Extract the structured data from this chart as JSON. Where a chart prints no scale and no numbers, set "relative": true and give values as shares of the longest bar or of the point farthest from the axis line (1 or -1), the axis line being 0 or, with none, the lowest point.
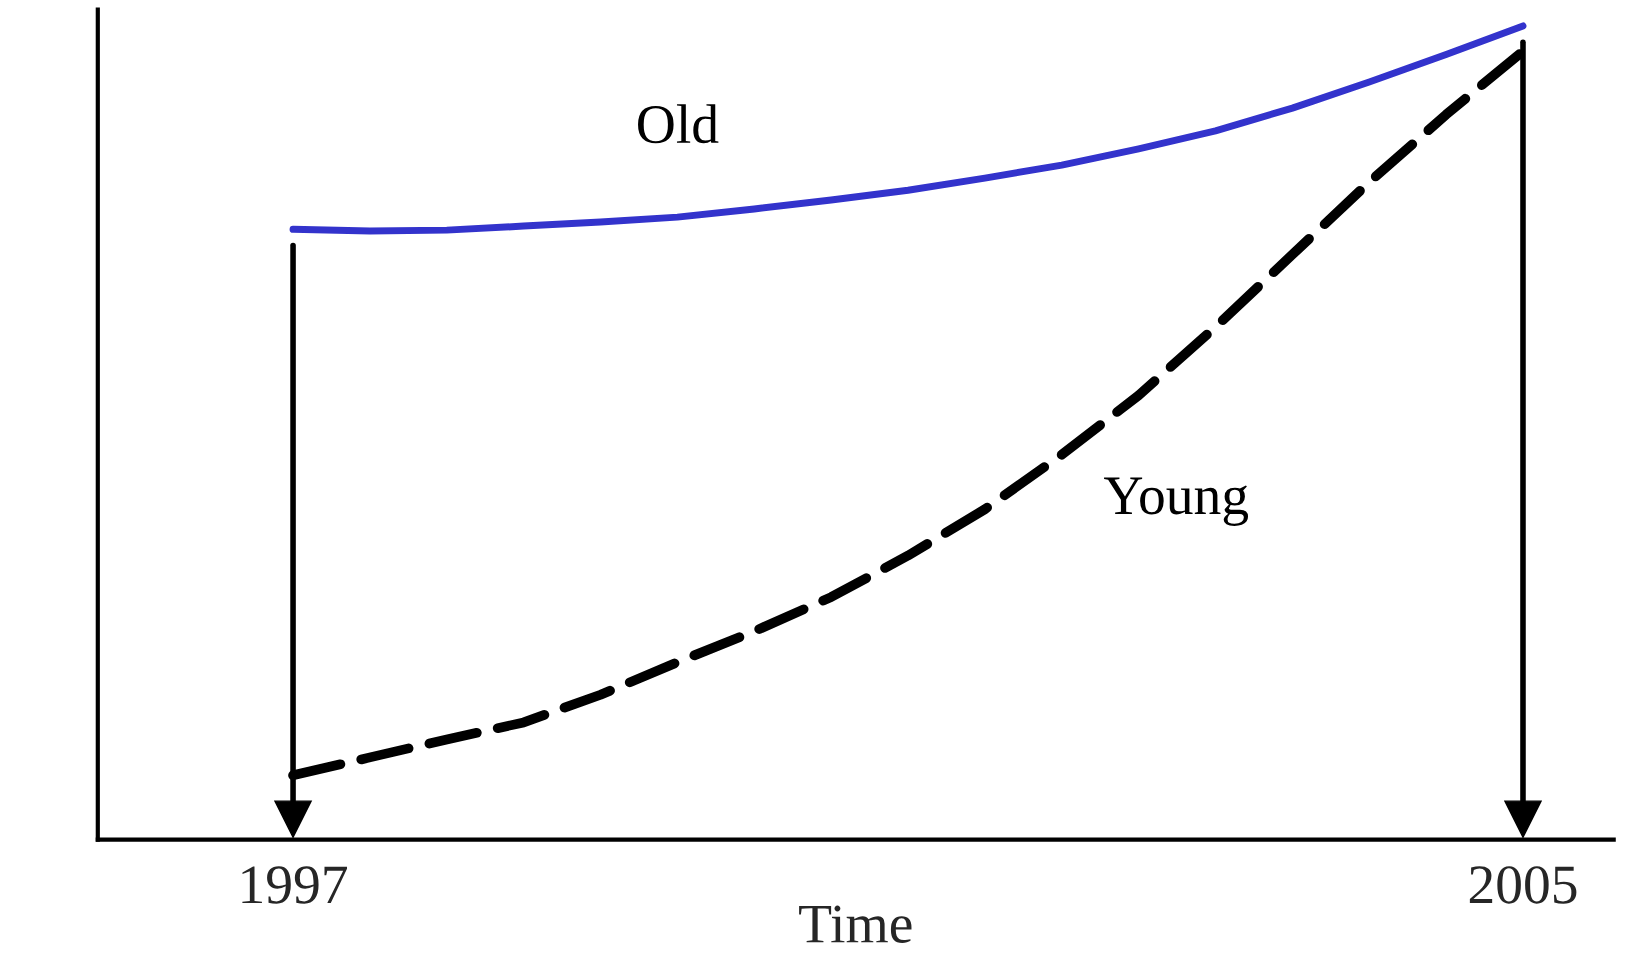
{
  "chart_data": {
    "type": "line",
    "relative": true,
    "xlabel": "Time",
    "x": [
      1997,
      1997.5,
      1998,
      1998.5,
      1999,
      1999.5,
      2000,
      2000.5,
      2001,
      2001.5,
      2002,
      2002.5,
      2003,
      2003.5,
      2004,
      2004.5,
      2005
    ],
    "xlim": [
      1995.73,
      2005.59
    ],
    "xticks": [
      1997,
      2005
    ],
    "grid": false,
    "legend": false,
    "series": [
      {
        "name": "Old",
        "color": "#3333cc",
        "line_style": "solid",
        "values": [
          0.75,
          0.748,
          0.749,
          0.754,
          0.759,
          0.765,
          0.775,
          0.786,
          0.798,
          0.813,
          0.829,
          0.849,
          0.871,
          0.899,
          0.931,
          0.965,
          1.0
        ]
      },
      {
        "name": "Young",
        "color": "#000000",
        "line_style": "dashed",
        "values": [
          0.079,
          0.101,
          0.123,
          0.144,
          0.178,
          0.218,
          0.256,
          0.298,
          0.349,
          0.406,
          0.473,
          0.546,
          0.63,
          0.719,
          0.808,
          0.891,
          0.969
        ]
      }
    ],
    "ref_lines": [
      {
        "axis": "x",
        "value": 1997,
        "color": "#000000"
      },
      {
        "axis": "x",
        "value": 2005,
        "color": "#000000"
      }
    ]
  }
}
